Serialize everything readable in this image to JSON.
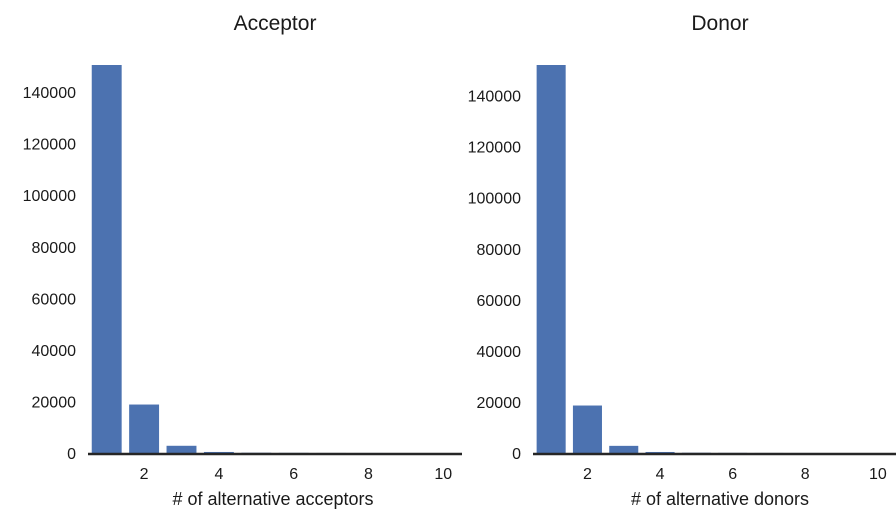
{
  "chart_data": [
    {
      "type": "bar",
      "title": "Acceptor",
      "xlabel": "# of alternative acceptors",
      "ylabel": "",
      "x": [
        1,
        2,
        3,
        4,
        5,
        6,
        7,
        8,
        9,
        10
      ],
      "values": [
        150500,
        18800,
        2800,
        400,
        100,
        50,
        20,
        10,
        5,
        2
      ],
      "xlim": [
        0.5,
        10.5
      ],
      "ylim": [
        0,
        150500
      ],
      "xticks": [
        2,
        4,
        6,
        8,
        10
      ],
      "yticks": [
        0,
        20000,
        40000,
        60000,
        80000,
        100000,
        120000,
        140000
      ],
      "grid": false,
      "colors": {
        "bar": "#4c72b0",
        "axis": "#262626"
      }
    },
    {
      "type": "bar",
      "title": "Donor",
      "xlabel": "# of alternative donors",
      "ylabel": "",
      "x": [
        1,
        2,
        3,
        4,
        5,
        6,
        7,
        8,
        9,
        10
      ],
      "values": [
        152000,
        18600,
        2800,
        400,
        100,
        50,
        20,
        10,
        5,
        2
      ],
      "xlim": [
        0.5,
        10.5
      ],
      "ylim": [
        0,
        152000
      ],
      "xticks": [
        2,
        4,
        6,
        8,
        10
      ],
      "yticks": [
        0,
        20000,
        40000,
        60000,
        80000,
        100000,
        120000,
        140000
      ],
      "grid": false,
      "colors": {
        "bar": "#4c72b0",
        "axis": "#262626"
      }
    }
  ]
}
